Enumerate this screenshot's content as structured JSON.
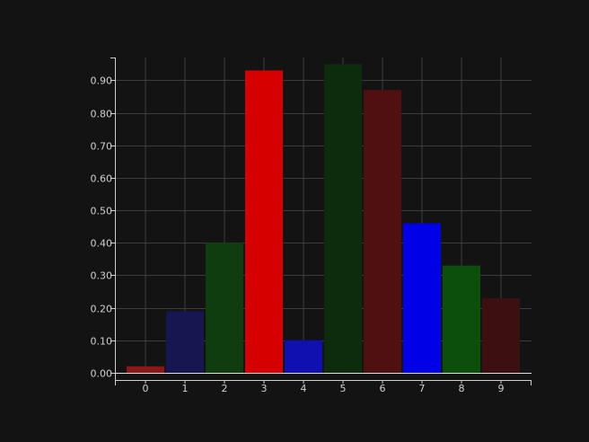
{
  "chart_data": {
    "type": "bar",
    "title": "",
    "xlabel": "",
    "ylabel": "",
    "categories": [
      "0",
      "1",
      "2",
      "3",
      "4",
      "5",
      "6",
      "7",
      "8",
      "9"
    ],
    "values": [
      0.02,
      0.19,
      0.4,
      0.93,
      0.1,
      0.95,
      0.87,
      0.46,
      0.33,
      0.23
    ],
    "bar_colors": [
      "#8a1818",
      "#161650",
      "#0f3d0f",
      "#d60000",
      "#1010b0",
      "#0d2b0d",
      "#4e1010",
      "#0000e6",
      "#0b4f0b",
      "#3c1010"
    ],
    "ylim": [
      0,
      0.97
    ],
    "yticks": [
      0.0,
      0.1,
      0.2,
      0.3,
      0.4,
      0.5,
      0.6,
      0.7,
      0.8,
      0.9
    ],
    "ytick_labels": [
      "0.00",
      "0.10",
      "0.20",
      "0.30",
      "0.40",
      "0.50",
      "0.60",
      "0.70",
      "0.80",
      "0.90"
    ],
    "grid": true,
    "legend": "none"
  }
}
